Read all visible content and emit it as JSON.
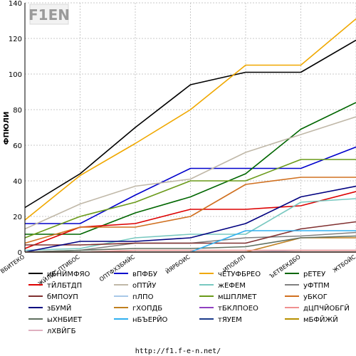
{
  "watermark": "F1EN",
  "footer_url": "http://f1.f-e-n.net/",
  "chart_data": {
    "type": "line",
    "ylabel": "ФПЮЛИ",
    "ylim": [
      0,
      140
    ],
    "yticks": [
      0,
      20,
      40,
      60,
      80,
      100,
      120,
      140
    ],
    "grid": true,
    "legend_position": "bottom",
    "categories": [
      "ВБИТЕКО",
      "ЖЙЛЙС-ПТИБОС",
      "ОПТФХЗБМЙС",
      "ЙЯРБОИС",
      "ИПОБЛП",
      "ЪЕТВЕКДБО",
      "ЖТБОЙС"
    ],
    "series": [
      {
        "name": "иБНЙМФЯО",
        "color": "#000000",
        "values": [
          25,
          44,
          70,
          94,
          101,
          101,
          119
        ]
      },
      {
        "name": "вПФБУ",
        "color": "#0000cc",
        "values": [
          16,
          16,
          32,
          47,
          47,
          47,
          59
        ]
      },
      {
        "name": "чЕТУФБРЕО",
        "color": "#f0a800",
        "values": [
          18,
          43,
          61,
          80,
          105,
          105,
          131
        ]
      },
      {
        "name": "рЕТЕУ",
        "color": "#006600",
        "values": [
          10,
          10,
          22,
          31,
          44,
          69,
          84
        ]
      },
      {
        "name": "тЙЛБТДП",
        "color": "#dd0000",
        "values": [
          2,
          14,
          16,
          24,
          24,
          26,
          34
        ]
      },
      {
        "name": "оПТЙУ",
        "color": "#c0b8a8",
        "values": [
          13,
          27,
          37,
          41,
          56,
          66,
          76
        ]
      },
      {
        "name": "жЕФЕМ",
        "color": "#78c8c0",
        "values": [
          1,
          2,
          8,
          10,
          10,
          28,
          30
        ]
      },
      {
        "name": "уФТПМ",
        "color": "#808080",
        "values": [
          0,
          1,
          5,
          5,
          8,
          9,
          11
        ]
      },
      {
        "name": "бМПОУП",
        "color": "#803030",
        "values": [
          4,
          4,
          5,
          5,
          5,
          13,
          17
        ]
      },
      {
        "name": "пЛПО",
        "color": "#a8c8e8",
        "values": [
          0,
          0,
          0,
          0,
          0,
          1,
          1
        ]
      },
      {
        "name": "мШПЛМЕТ",
        "color": "#6a9a1a",
        "values": [
          8,
          20,
          28,
          40,
          40,
          52,
          52
        ]
      },
      {
        "name": "уБКОГ",
        "color": "#d07020",
        "values": [
          5,
          14,
          14,
          20,
          38,
          42,
          42
        ]
      },
      {
        "name": "зБУМЙ",
        "color": "#000080",
        "values": [
          0,
          6,
          6,
          8,
          16,
          31,
          37
        ]
      },
      {
        "name": "гХОПДБ",
        "color": "#c08020",
        "values": [
          0,
          0,
          0,
          0,
          0,
          8,
          8
        ]
      },
      {
        "name": "тБКЛПОЕО",
        "color": "#9040c0",
        "values": [
          0,
          0,
          0,
          0,
          0,
          0,
          0
        ]
      },
      {
        "name": "дЦПЧЙОБГЙ",
        "color": "#f09090",
        "values": [
          0,
          0,
          1,
          1,
          1,
          1,
          1
        ]
      },
      {
        "name": "ыХНБИЕТ",
        "color": "#607060",
        "values": [
          0,
          1,
          2,
          2,
          3,
          8,
          9
        ]
      },
      {
        "name": "нБЪЕРЙО",
        "color": "#30b0f0",
        "values": [
          0,
          0,
          0,
          0,
          12,
          12,
          12
        ]
      },
      {
        "name": "тЯУЕМ",
        "color": "#1a3a8a",
        "values": [
          0,
          0,
          0,
          0,
          0,
          0,
          0
        ]
      },
      {
        "name": "мБФЙЖЙ",
        "color": "#b89000",
        "values": [
          0,
          0,
          0,
          0,
          0,
          0,
          0
        ]
      },
      {
        "name": "лХВЙГБ",
        "color": "#e0b0c0",
        "values": [
          0,
          0,
          0,
          0,
          0,
          0,
          0
        ]
      }
    ]
  }
}
